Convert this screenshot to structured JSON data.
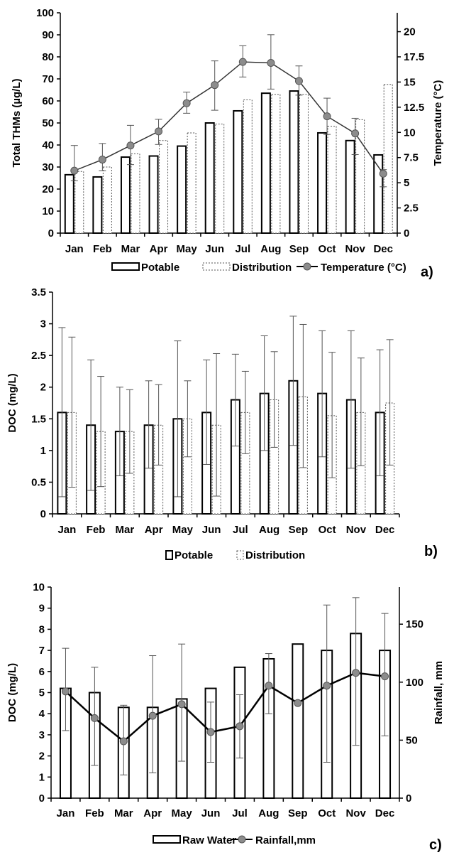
{
  "colors": {
    "ink": "#000000",
    "marker": "#8c8c8c",
    "error_bar": "#555555",
    "dashed_bar": "#555555",
    "background": "#ffffff"
  },
  "chart_data": [
    {
      "panel_label": "a)",
      "type": "bar",
      "categories": [
        "Jan",
        "Feb",
        "Mar",
        "Apr",
        "May",
        "Jun",
        "Jul",
        "Aug",
        "Sep",
        "Oct",
        "Nov",
        "Dec"
      ],
      "ylabel": "Total THMs (µg/L)",
      "y2label": "Temperature (°C)",
      "ylim": [
        0,
        100
      ],
      "y2lim": [
        0,
        21.875
      ],
      "yticks": [
        0,
        10,
        20,
        30,
        40,
        50,
        60,
        70,
        80,
        90,
        100
      ],
      "y2ticks": [
        0,
        2.5,
        5,
        7.5,
        10,
        12.5,
        15,
        17.5,
        20
      ],
      "series": [
        {
          "name": "Potable",
          "kind": "bar",
          "style": "solid",
          "values": [
            26.5,
            25.5,
            34.5,
            35,
            39.5,
            50,
            55.5,
            63.5,
            64.5,
            45.5,
            42,
            35.5
          ]
        },
        {
          "name": "Distribution",
          "kind": "bar",
          "style": "dashed",
          "values": [
            28,
            30,
            36,
            42,
            45.5,
            49.5,
            60.5,
            63,
            63,
            48.5,
            51.5,
            67.5
          ]
        },
        {
          "name": "Temperature (°C)",
          "kind": "line",
          "axis": "right",
          "values": [
            6.2,
            7.3,
            8.7,
            10.1,
            12.9,
            14.7,
            17,
            16.9,
            15.1,
            11.6,
            9.9,
            5.9
          ],
          "err_low": [
            5.2,
            6.2,
            6.8,
            8.8,
            11.9,
            12.2,
            15.5,
            14.3,
            13.7,
            9.8,
            7.8,
            4.6
          ],
          "err_high": [
            8.7,
            8.9,
            10.7,
            11.3,
            14,
            17.1,
            18.6,
            19.7,
            16.6,
            13.4,
            11.4,
            6.3
          ]
        }
      ],
      "legend": [
        "Potable",
        "Distribution",
        "Temperature (°C)"
      ],
      "legend_position": "bottom"
    },
    {
      "panel_label": "b)",
      "type": "bar",
      "categories": [
        "Jan",
        "Feb",
        "Mar",
        "Apr",
        "May",
        "Jun",
        "Jul",
        "Aug",
        "Sep",
        "Oct",
        "Nov",
        "Dec"
      ],
      "ylabel": "DOC (mg/L)",
      "ylim": [
        0,
        3.5
      ],
      "yticks": [
        0,
        0.5,
        1,
        1.5,
        2,
        2.5,
        3,
        3.5
      ],
      "series": [
        {
          "name": "Potable",
          "kind": "bar",
          "style": "solid",
          "values": [
            1.6,
            1.4,
            1.3,
            1.4,
            1.5,
            1.6,
            1.8,
            1.9,
            2.1,
            1.9,
            1.8,
            1.6
          ],
          "err_low": [
            0.27,
            0.37,
            0.6,
            0.72,
            0.27,
            0.78,
            1.07,
            1.0,
            1.08,
            0.9,
            0.72,
            0.6
          ],
          "err_high": [
            2.94,
            2.43,
            2.0,
            2.1,
            2.73,
            2.43,
            2.52,
            2.81,
            3.12,
            2.89,
            2.89,
            2.59
          ]
        },
        {
          "name": "Distribution",
          "kind": "bar",
          "style": "dashed",
          "values": [
            1.6,
            1.3,
            1.3,
            1.4,
            1.5,
            1.4,
            1.6,
            1.8,
            1.85,
            1.55,
            1.6,
            1.75
          ],
          "err_low": [
            0.42,
            0.43,
            0.64,
            0.77,
            0.9,
            0.28,
            0.95,
            1.05,
            0.73,
            0.57,
            0.76,
            0.77
          ],
          "err_high": [
            2.79,
            2.17,
            1.96,
            2.04,
            2.1,
            2.53,
            2.25,
            2.56,
            2.99,
            2.55,
            2.46,
            2.75
          ]
        }
      ],
      "legend": [
        "Potable",
        "Distribution"
      ],
      "legend_position": "bottom"
    },
    {
      "panel_label": "c)",
      "type": "bar",
      "categories": [
        "Jan",
        "Feb",
        "Mar",
        "Apr",
        "May",
        "Jun",
        "Jul",
        "Aug",
        "Sep",
        "Oct",
        "Nov",
        "Dec"
      ],
      "ylabel": "DOC (mg/L)",
      "y2label": "Rainfall, mm",
      "ylim": [
        0,
        10
      ],
      "y2lim": [
        0,
        182
      ],
      "yticks": [
        0,
        1,
        2,
        3,
        4,
        5,
        6,
        7,
        8,
        9,
        10
      ],
      "y2ticks": [
        0,
        50,
        100,
        150
      ],
      "series": [
        {
          "name": "Raw Water",
          "kind": "bar",
          "style": "solid",
          "values": [
            5.2,
            5.0,
            4.3,
            4.3,
            4.7,
            5.2,
            6.2,
            6.6,
            7.3,
            7.0,
            7.8,
            7.0
          ],
          "err_low": [
            3.2,
            1.55,
            1.1,
            1.2,
            1.75,
            1.7,
            1.9,
            4.0,
            1.85,
            1.7,
            2.5,
            2.95
          ],
          "err_high": [
            7.1,
            6.2,
            4.4,
            6.75,
            7.3,
            4.55,
            4.9,
            6.85,
            null,
            9.15,
            9.5,
            8.75
          ]
        },
        {
          "name": "Rainfall,mm",
          "kind": "line",
          "axis": "right",
          "values": [
            92,
            69,
            49,
            71,
            81,
            57,
            62,
            97,
            82,
            97,
            108,
            105
          ]
        }
      ],
      "legend": [
        "Raw Water",
        "Rainfall,mm"
      ],
      "legend_position": "bottom"
    }
  ]
}
